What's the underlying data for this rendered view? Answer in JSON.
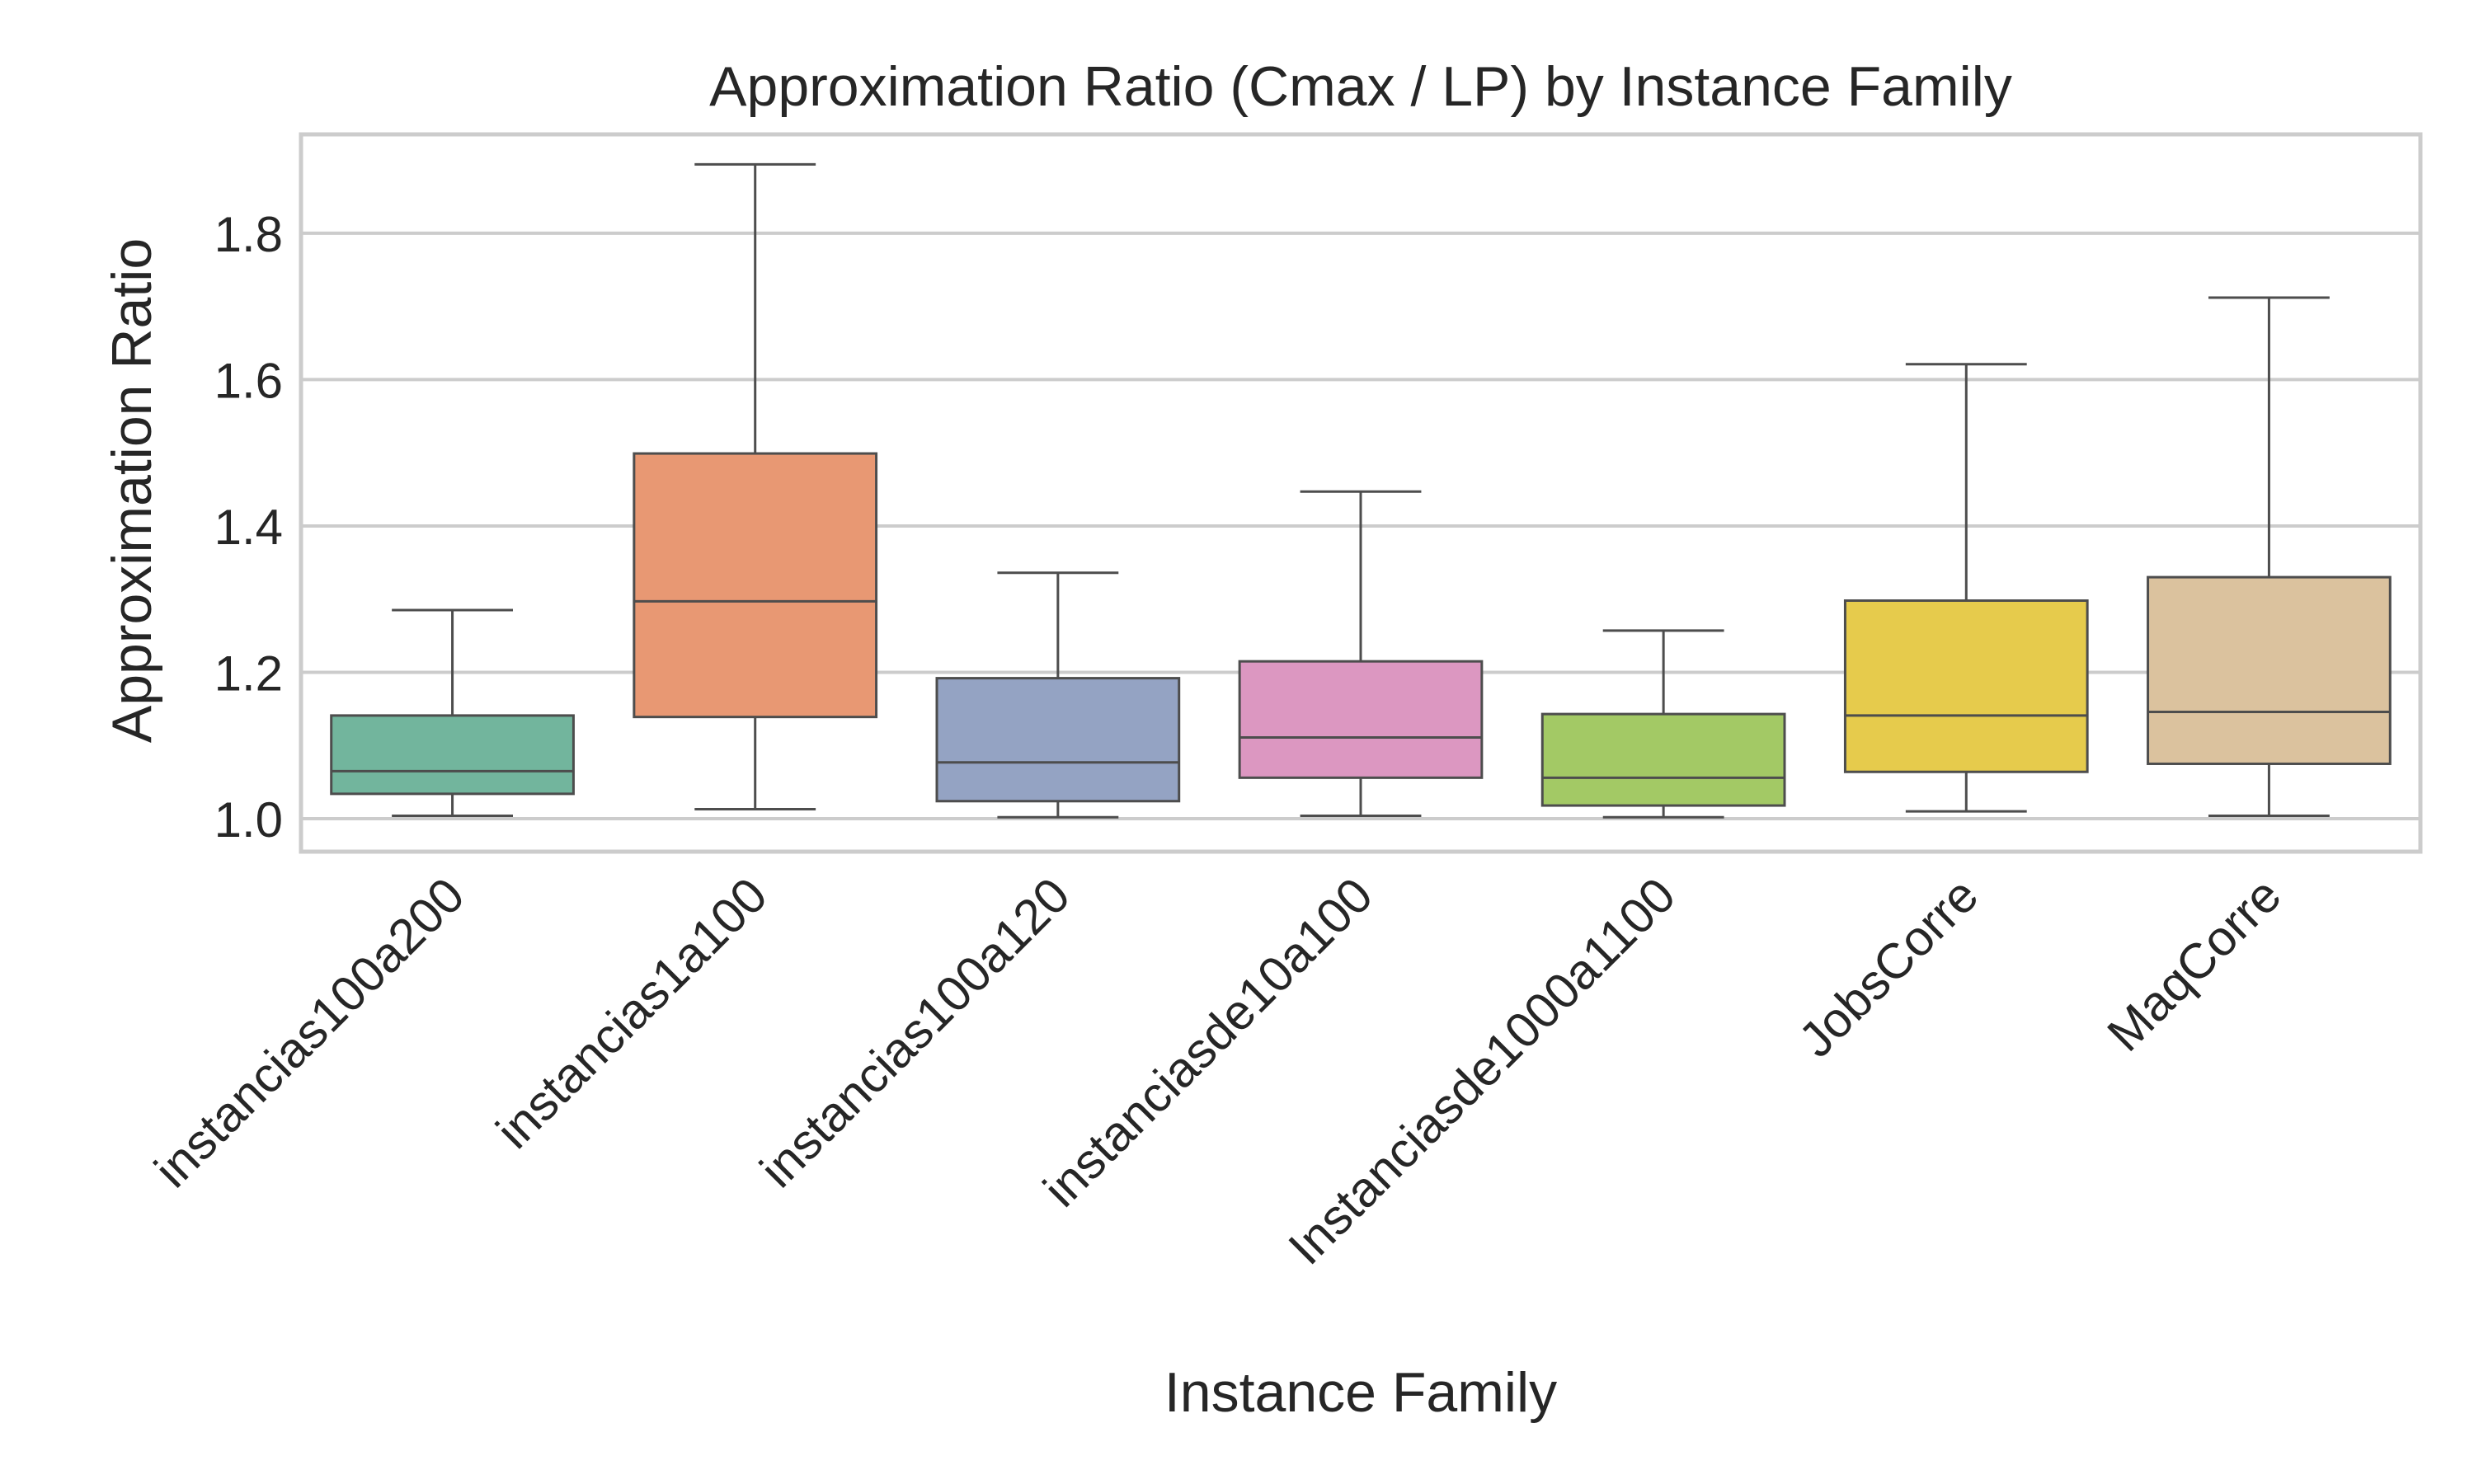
{
  "chart_data": {
    "type": "box",
    "title": "Approximation Ratio (Cmax / LP) by Instance Family",
    "xlabel": "Instance Family",
    "ylabel": "Approximation Ratio",
    "ylim": [
      0.955,
      1.935
    ],
    "yticks": [
      1.0,
      1.2,
      1.4,
      1.6,
      1.8
    ],
    "ytick_labels": [
      "1.0",
      "1.2",
      "1.4",
      "1.6",
      "1.8"
    ],
    "grid": true,
    "categories": [
      "instancias100a200",
      "instancias1a100",
      "instancias100a120",
      "instanciasde10a100",
      "Instanciasde1000a1100",
      "JobsCorre",
      "MaqCorre"
    ],
    "boxes": [
      {
        "category": "instancias100a200",
        "whisker_low": 1.004,
        "q1": 1.034,
        "median": 1.065,
        "q3": 1.141,
        "whisker_high": 1.285,
        "color": "#72b59d"
      },
      {
        "category": "instancias1a100",
        "whisker_low": 1.013,
        "q1": 1.139,
        "median": 1.297,
        "q3": 1.499,
        "whisker_high": 1.894,
        "color": "#e89873"
      },
      {
        "category": "instancias100a120",
        "whisker_low": 1.002,
        "q1": 1.024,
        "median": 1.077,
        "q3": 1.192,
        "whisker_high": 1.336,
        "color": "#94a3c3"
      },
      {
        "category": "instanciasde10a100",
        "whisker_low": 1.004,
        "q1": 1.056,
        "median": 1.111,
        "q3": 1.215,
        "whisker_high": 1.447,
        "color": "#dc97c1"
      },
      {
        "category": "Instanciasde1000a1100",
        "whisker_low": 1.002,
        "q1": 1.018,
        "median": 1.056,
        "q3": 1.143,
        "whisker_high": 1.257,
        "color": "#a3c965"
      },
      {
        "category": "JobsCorre",
        "whisker_low": 1.01,
        "q1": 1.064,
        "median": 1.141,
        "q3": 1.298,
        "whisker_high": 1.621,
        "color": "#e6cb4c"
      },
      {
        "category": "MaqCorre",
        "whisker_low": 1.004,
        "q1": 1.075,
        "median": 1.146,
        "q3": 1.33,
        "whisker_high": 1.712,
        "color": "#dbc29e"
      }
    ],
    "colors": {
      "grid": "#cccccc",
      "frame": "#cccccc",
      "line": "#4d4d4d",
      "text": "#262626"
    }
  }
}
